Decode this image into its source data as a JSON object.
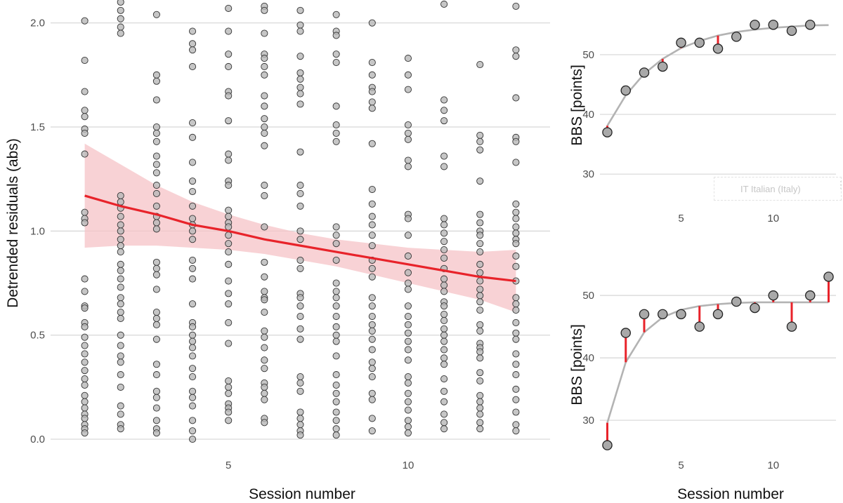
{
  "colors": {
    "fit": "#e8232a",
    "band": "#f6c3c7",
    "point": "#b8b8b8",
    "curve": "#b3b3b3",
    "resid": "#e8232a"
  },
  "overlay": {
    "language_label": "IT  Italian (Italy)",
    "language_icon": "dropdown-arrow-icon"
  },
  "chart_data": [
    {
      "id": "main",
      "type": "scatter",
      "xlabel": "Session number",
      "ylabel": "Detrended residuals (abs)",
      "xlim": [
        0.05,
        13.95
      ],
      "ylim": [
        -0.02,
        2.1
      ],
      "x_ticks": [
        5,
        10
      ],
      "y_ticks": [
        0.0,
        0.5,
        1.0,
        1.5,
        2.0
      ],
      "y_tick_labels": [
        "0.0",
        "0.5",
        "1.0",
        "1.5",
        "2.0"
      ],
      "points": [
        {
          "x": 1,
          "y": [
            2.01,
            1.82,
            1.67,
            1.58,
            1.55,
            1.49,
            1.47,
            1.37,
            1.09,
            1.06,
            1.04,
            0.77,
            0.71,
            0.64,
            0.63,
            0.56,
            0.54,
            0.49,
            0.45,
            0.41,
            0.37,
            0.33,
            0.29,
            0.26,
            0.21,
            0.18,
            0.15,
            0.12,
            0.1,
            0.07,
            0.05,
            0.03
          ]
        },
        {
          "x": 2,
          "y": [
            2.1,
            2.06,
            2.02,
            1.98,
            1.95,
            1.17,
            1.14,
            1.11,
            1.07,
            1.03,
            1.0,
            0.96,
            0.93,
            0.9,
            0.84,
            0.81,
            0.77,
            0.73,
            0.68,
            0.65,
            0.61,
            0.58,
            0.5,
            0.45,
            0.4,
            0.37,
            0.31,
            0.25,
            0.16,
            0.12,
            0.07,
            0.05
          ]
        },
        {
          "x": 3,
          "y": [
            2.04,
            1.75,
            1.72,
            1.63,
            1.5,
            1.47,
            1.43,
            1.36,
            1.32,
            1.28,
            1.22,
            1.18,
            1.12,
            1.07,
            1.04,
            1.01,
            0.85,
            0.82,
            0.79,
            0.72,
            0.61,
            0.58,
            0.55,
            0.48,
            0.36,
            0.31,
            0.23,
            0.2,
            0.15,
            0.09,
            0.05,
            0.03
          ]
        },
        {
          "x": 4,
          "y": [
            1.96,
            1.9,
            1.87,
            1.79,
            1.52,
            1.45,
            1.33,
            1.24,
            1.19,
            1.12,
            1.06,
            1.03,
            1.0,
            0.96,
            0.86,
            0.82,
            0.77,
            0.65,
            0.56,
            0.54,
            0.5,
            0.47,
            0.44,
            0.4,
            0.34,
            0.3,
            0.23,
            0.2,
            0.16,
            0.09,
            0.04,
            0.0
          ]
        },
        {
          "x": 5,
          "y": [
            2.07,
            1.96,
            1.85,
            1.79,
            1.67,
            1.65,
            1.53,
            1.37,
            1.34,
            1.24,
            1.22,
            1.1,
            1.07,
            1.04,
            1.02,
            0.98,
            0.94,
            0.9,
            0.84,
            0.76,
            0.7,
            0.65,
            0.56,
            0.46,
            0.28,
            0.25,
            0.22,
            0.17,
            0.15,
            0.13,
            0.09
          ]
        },
        {
          "x": 6,
          "y": [
            2.08,
            2.06,
            1.95,
            1.85,
            1.83,
            1.79,
            1.75,
            1.65,
            1.6,
            1.54,
            1.5,
            1.47,
            1.41,
            1.22,
            1.17,
            1.02,
            0.85,
            0.78,
            0.71,
            0.68,
            0.67,
            0.61,
            0.52,
            0.49,
            0.44,
            0.38,
            0.34,
            0.27,
            0.25,
            0.22,
            0.19,
            0.1,
            0.08
          ]
        },
        {
          "x": 7,
          "y": [
            2.06,
            1.99,
            1.96,
            1.84,
            1.76,
            1.73,
            1.69,
            1.66,
            1.61,
            1.38,
            1.22,
            1.18,
            1.12,
            1.0,
            0.96,
            0.86,
            0.82,
            0.7,
            0.68,
            0.64,
            0.59,
            0.53,
            0.48,
            0.3,
            0.27,
            0.23,
            0.13,
            0.1,
            0.07,
            0.04,
            0.02
          ]
        },
        {
          "x": 8,
          "y": [
            2.04,
            1.96,
            1.94,
            1.85,
            1.81,
            1.6,
            1.51,
            1.47,
            1.43,
            1.02,
            0.98,
            0.94,
            0.86,
            0.75,
            0.71,
            0.68,
            0.64,
            0.59,
            0.54,
            0.5,
            0.47,
            0.4,
            0.31,
            0.26,
            0.22,
            0.18,
            0.13,
            0.09,
            0.05,
            0.02
          ]
        },
        {
          "x": 9,
          "y": [
            2.0,
            1.81,
            1.75,
            1.69,
            1.67,
            1.62,
            1.59,
            1.42,
            1.2,
            1.13,
            1.07,
            1.03,
            0.98,
            0.93,
            0.86,
            0.82,
            0.78,
            0.68,
            0.64,
            0.59,
            0.55,
            0.52,
            0.48,
            0.43,
            0.37,
            0.34,
            0.3,
            0.22,
            0.19,
            0.1,
            0.04
          ]
        },
        {
          "x": 10,
          "y": [
            1.83,
            1.75,
            1.68,
            1.51,
            1.47,
            1.44,
            1.34,
            1.31,
            1.08,
            1.06,
            0.98,
            0.88,
            0.8,
            0.75,
            0.72,
            0.64,
            0.59,
            0.55,
            0.51,
            0.47,
            0.43,
            0.38,
            0.3,
            0.27,
            0.22,
            0.18,
            0.14,
            0.09,
            0.06,
            0.03
          ]
        },
        {
          "x": 11,
          "y": [
            2.09,
            1.63,
            1.58,
            1.53,
            1.36,
            1.31,
            1.06,
            1.03,
            0.99,
            0.95,
            0.91,
            0.87,
            0.82,
            0.77,
            0.74,
            0.71,
            0.66,
            0.64,
            0.6,
            0.57,
            0.53,
            0.5,
            0.47,
            0.43,
            0.39,
            0.36,
            0.29,
            0.23,
            0.18,
            0.12,
            0.08,
            0.05
          ]
        },
        {
          "x": 12,
          "y": [
            1.8,
            1.46,
            1.43,
            1.39,
            1.24,
            1.08,
            1.04,
            1.0,
            0.98,
            0.94,
            0.9,
            0.84,
            0.8,
            0.76,
            0.72,
            0.69,
            0.66,
            0.62,
            0.55,
            0.52,
            0.46,
            0.44,
            0.42,
            0.39,
            0.32,
            0.28,
            0.21,
            0.18,
            0.15,
            0.12,
            0.08,
            0.05
          ]
        },
        {
          "x": 13,
          "y": [
            2.08,
            1.87,
            1.84,
            1.64,
            1.45,
            1.43,
            1.33,
            1.13,
            1.09,
            1.06,
            1.02,
            0.99,
            0.96,
            0.94,
            0.88,
            0.83,
            0.76,
            0.68,
            0.65,
            0.62,
            0.56,
            0.51,
            0.48,
            0.41,
            0.36,
            0.31,
            0.24,
            0.19,
            0.13,
            0.07,
            0.04
          ]
        }
      ],
      "fit_line": {
        "x": [
          1,
          2,
          3,
          4,
          5,
          6,
          7,
          8,
          9,
          10,
          11,
          12,
          13
        ],
        "y": [
          1.17,
          1.12,
          1.08,
          1.03,
          1.0,
          0.96,
          0.93,
          0.9,
          0.87,
          0.84,
          0.81,
          0.78,
          0.76
        ]
      },
      "confidence_band": {
        "x": [
          1,
          2,
          3,
          4,
          5,
          6,
          7,
          8,
          9,
          10,
          11,
          12,
          13
        ],
        "upper": [
          1.42,
          1.32,
          1.22,
          1.14,
          1.08,
          1.03,
          0.99,
          0.96,
          0.94,
          0.92,
          0.91,
          0.9,
          0.91
        ],
        "lower": [
          0.92,
          0.93,
          0.93,
          0.92,
          0.91,
          0.89,
          0.86,
          0.83,
          0.79,
          0.75,
          0.71,
          0.67,
          0.61
        ]
      }
    },
    {
      "id": "top-right",
      "type": "scatter",
      "xlabel": "",
      "ylabel": "BBS [points]",
      "xlim": [
        0.6,
        13.4
      ],
      "ylim": [
        24.5,
        58.8
      ],
      "x_ticks": [
        5,
        10
      ],
      "y_ticks": [
        30,
        40,
        50
      ],
      "x": [
        1,
        2,
        3,
        4,
        5,
        6,
        7,
        8,
        9,
        10,
        11,
        12
      ],
      "observed": [
        37,
        44,
        47,
        48,
        52,
        52,
        51,
        53,
        55,
        55,
        54,
        55
      ],
      "fitted": [
        38.1,
        43.2,
        46.8,
        49.3,
        51.1,
        52.3,
        53.2,
        53.8,
        54.2,
        54.5,
        54.7,
        54.9
      ],
      "curve_x_end": 13
    },
    {
      "id": "bottom-right",
      "type": "scatter",
      "xlabel": "Session number",
      "ylabel": "BBS [points]",
      "xlim": [
        0.6,
        13.4
      ],
      "ylim": [
        24.5,
        55.3
      ],
      "x_ticks": [
        5,
        10
      ],
      "y_ticks": [
        30,
        40,
        50
      ],
      "x": [
        1,
        2,
        3,
        4,
        5,
        6,
        7,
        8,
        9,
        10,
        11,
        12,
        13
      ],
      "observed": [
        26,
        44,
        47,
        47,
        47,
        45,
        47,
        49,
        48,
        50,
        45,
        50,
        53
      ],
      "fitted": [
        29.6,
        39.3,
        44.1,
        46.5,
        47.7,
        48.3,
        48.6,
        48.8,
        48.9,
        48.9,
        48.9,
        48.9,
        48.9
      ]
    }
  ]
}
